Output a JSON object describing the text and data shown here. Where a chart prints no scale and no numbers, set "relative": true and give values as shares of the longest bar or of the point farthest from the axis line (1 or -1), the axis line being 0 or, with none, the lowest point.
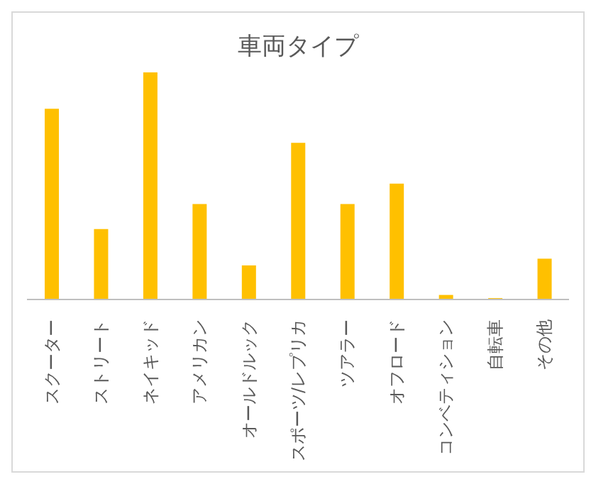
{
  "chart_data": {
    "type": "bar",
    "title": "車両タイプ",
    "relative": true,
    "color": "#ffc000",
    "categories": [
      "スクーター",
      "ストリート",
      "ネイキッド",
      "アメリカン",
      "オールドルック",
      "スポーツ/レプリカ",
      "ツアラー",
      "オフロード",
      "コンベティション",
      "自転車",
      "その他"
    ],
    "values": [
      0.84,
      0.31,
      1,
      0.42,
      0.15,
      0.69,
      0.42,
      0.51,
      0.02,
      0.006,
      0.18
    ],
    "grid": false,
    "legend": false
  }
}
